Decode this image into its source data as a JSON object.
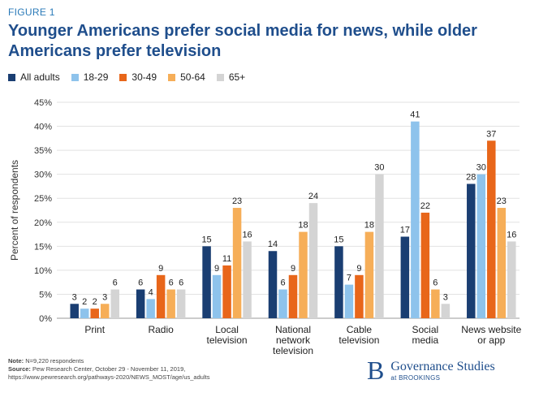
{
  "figure_label": "FIGURE 1",
  "title": "Younger Americans prefer social media for news, while older Americans prefer television",
  "chart_data": {
    "type": "bar",
    "title": "Younger Americans prefer social media for news, while older Americans prefer television",
    "xlabel": "",
    "ylabel": "Percent of respondents",
    "ylim": [
      0,
      45
    ],
    "yticks": [
      "0%",
      "5%",
      "10%",
      "15%",
      "20%",
      "25%",
      "30%",
      "35%",
      "40%",
      "45%"
    ],
    "grid": true,
    "legend_position": "top-left",
    "categories": [
      [
        "Print"
      ],
      [
        "Radio"
      ],
      [
        "Local",
        "television"
      ],
      [
        "National",
        "network",
        "television"
      ],
      [
        "Cable",
        "television"
      ],
      [
        "Social",
        "media"
      ],
      [
        "News website",
        "or app"
      ]
    ],
    "series": [
      {
        "name": "All adults",
        "color": "#1a3e72",
        "values": [
          3,
          6,
          15,
          14,
          15,
          17,
          28
        ]
      },
      {
        "name": "18-29",
        "color": "#8ec3ec",
        "values": [
          2,
          4,
          9,
          6,
          7,
          41,
          30
        ]
      },
      {
        "name": "30-49",
        "color": "#e8661a",
        "values": [
          2,
          9,
          11,
          9,
          9,
          22,
          37
        ]
      },
      {
        "name": "50-64",
        "color": "#f6ae58",
        "values": [
          3,
          6,
          23,
          18,
          18,
          6,
          23
        ]
      },
      {
        "name": "65+",
        "color": "#d4d4d4",
        "values": [
          6,
          6,
          16,
          24,
          30,
          3,
          16
        ]
      }
    ]
  },
  "notes": {
    "note_label": "Note:",
    "note_text": "N=9,220 respondents",
    "source_label": "Source:",
    "source_text": "Pew Research Center, October 29 - November 11, 2019,",
    "source_url": "https://www.pewresearch.org/pathways-2020/NEWS_MOST/age/us_adults"
  },
  "brand": {
    "mark": "B",
    "name": "Governance Studies",
    "sub": "at BROOKINGS"
  }
}
